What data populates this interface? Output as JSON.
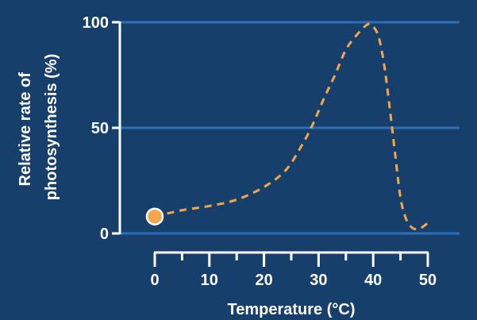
{
  "chart_data": {
    "type": "line",
    "title": "",
    "xlabel": "Temperature (°C)",
    "ylabel_lines": [
      "Relative rate of",
      "photosynthesis (%)"
    ],
    "xlim": [
      0,
      50
    ],
    "ylim": [
      0,
      100
    ],
    "x_ticks": [
      0,
      10,
      20,
      30,
      40,
      50
    ],
    "x_tick_labels": [
      "0",
      "10",
      "20",
      "30",
      "40",
      "50"
    ],
    "x_minor_ticks": [
      5,
      15,
      25,
      35,
      45
    ],
    "y_ticks": [
      0,
      50,
      100
    ],
    "y_tick_labels": [
      "0",
      "50",
      "100"
    ],
    "grid": true,
    "series": [
      {
        "style": "dashed",
        "x": [
          0,
          5,
          10,
          15,
          20,
          24,
          27,
          29,
          31,
          33,
          35,
          37,
          39,
          40,
          41,
          42,
          43,
          44,
          45,
          46,
          47,
          48,
          49,
          50
        ],
        "y": [
          8,
          11,
          13,
          16,
          22,
          30,
          42,
          52,
          64,
          75,
          87,
          94,
          99,
          98,
          93,
          80,
          60,
          38,
          17,
          7,
          3,
          2,
          3,
          5
        ]
      }
    ],
    "start_marker": {
      "x": 0,
      "y": 8
    },
    "colors": {
      "background": "#163f6b",
      "gridline": "#2f6fb8",
      "curve": "#f5a54a",
      "axis": "#ffffff",
      "text": "#ffffff"
    }
  }
}
